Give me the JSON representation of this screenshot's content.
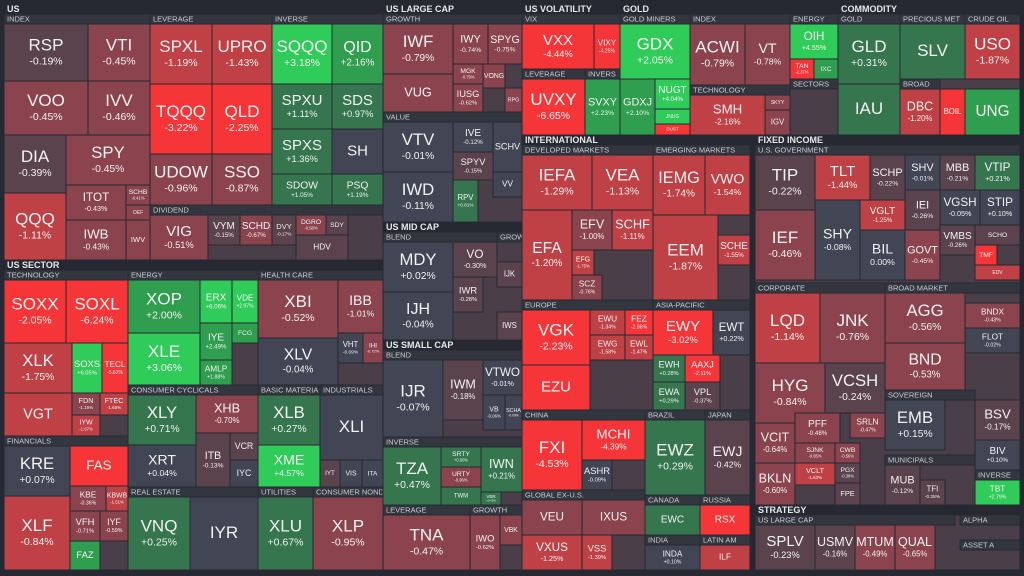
{
  "headers": [
    "US",
    "INDEX",
    "LEVERAGE",
    "INVERSE",
    "DIVIDEND",
    "US SECTOR",
    "TECHNOLOGY",
    "FINANCIALS",
    "ENERGY",
    "HEALTH CARE",
    "CONSUMER CYCLICALS",
    "BASIC MATERIA",
    "INDUSTRIALS",
    "REAL ESTATE",
    "UTILITIES",
    "CONSUMER NONDR",
    "US LARGE CAP",
    "GROWTH",
    "VALUE",
    "US MID CAP",
    "BLEND",
    "GROWTH",
    "US SMALL CAP",
    "BLEND",
    "INVERSE",
    "LEVERAGE",
    "GROWTH",
    "US VOLATILITY",
    "VIX",
    "LEVERAGE",
    "INVERS",
    "GOLD",
    "GOLD MINERS",
    "INDEX",
    "TECHNOLOGY",
    "ENERGY",
    "SECTORS",
    "COMMODITY",
    "GOLD",
    "PRECIOUS MET",
    "CRUDE OIL",
    "BROAD",
    "INTERNATIONAL",
    "DEVELOPED MARKETS",
    "EMERGING MARKETS",
    "EUROPE",
    "ASIA-PACIFIC",
    "CHINA",
    "BRAZIL",
    "JAPAN",
    "GLOBAL EX-U.S.",
    "CANADA",
    "RUSSIA",
    "INDIA",
    "LATIN AM",
    "FIXED INCOME",
    "U.S. GOVERNMENT",
    "CORPORATE",
    "BROAD MARKET",
    "SOVEREIGN",
    "MUNICIPALS",
    "INVERSE",
    "STRATEGY",
    "US LARGE CAP",
    "ALPHA",
    "ASSET A"
  ],
  "tiles": [
    {
      "ticker": "RSP",
      "change": "-0.19%"
    },
    {
      "ticker": "VTI",
      "change": "-0.45%"
    },
    {
      "ticker": "VOO",
      "change": "-0.45%"
    },
    {
      "ticker": "IVV",
      "change": "-0.46%"
    },
    {
      "ticker": "DIA",
      "change": "-0.39%"
    },
    {
      "ticker": "SPY",
      "change": "-0.45%"
    },
    {
      "ticker": "QQQ",
      "change": "-1.11%"
    },
    {
      "ticker": "ITOT",
      "change": "-0.43%"
    },
    {
      "ticker": "IWB",
      "change": "-0.43%"
    },
    {
      "ticker": "SCHB",
      "change": "-0.41%"
    },
    {
      "ticker": "OEF"
    },
    {
      "ticker": "IWV"
    },
    {
      "ticker": "SPXL",
      "change": "-1.19%"
    },
    {
      "ticker": "UPRO",
      "change": "-1.43%"
    },
    {
      "ticker": "TQQQ",
      "change": "-3.22%"
    },
    {
      "ticker": "QLD",
      "change": "-2.25%"
    },
    {
      "ticker": "UDOW",
      "change": "-0.96%"
    },
    {
      "ticker": "SSO",
      "change": "-0.87%"
    },
    {
      "ticker": "SQQQ",
      "change": "+3.18%"
    },
    {
      "ticker": "QID",
      "change": "+2.16%"
    },
    {
      "ticker": "SPXU",
      "change": "+1.11%"
    },
    {
      "ticker": "SDS",
      "change": "+0.97%"
    },
    {
      "ticker": "SPXS",
      "change": "+1.36%"
    },
    {
      "ticker": "SH"
    },
    {
      "ticker": "SDOW",
      "change": "+1.05%"
    },
    {
      "ticker": "PSQ",
      "change": "+1.19%"
    },
    {
      "ticker": "VIG",
      "change": "-0.51%"
    },
    {
      "ticker": "VYM",
      "change": "-0.15%"
    },
    {
      "ticker": "SCHD",
      "change": "-0.67%"
    },
    {
      "ticker": "DVY",
      "change": "-0.17%"
    },
    {
      "ticker": "DGRO",
      "change": "-0.58%"
    },
    {
      "ticker": "SDY"
    },
    {
      "ticker": "HDV"
    },
    {
      "ticker": "SOXX",
      "change": "-2.05%"
    },
    {
      "ticker": "SOXL",
      "change": "-6.24%"
    },
    {
      "ticker": "XLK",
      "change": "-1.75%"
    },
    {
      "ticker": "SOXS",
      "change": "+6.05%"
    },
    {
      "ticker": "TECL",
      "change": "-5.62%"
    },
    {
      "ticker": "VGT"
    },
    {
      "ticker": "FDN",
      "change": "-1.15%"
    },
    {
      "ticker": "FTEC",
      "change": "-1.65%"
    },
    {
      "ticker": "IYW",
      "change": "-1.67%"
    },
    {
      "ticker": "KRE",
      "change": "+0.07%"
    },
    {
      "ticker": "FAS"
    },
    {
      "ticker": "KBE",
      "change": "-0.36%"
    },
    {
      "ticker": "KBWB",
      "change": "-1.51%"
    },
    {
      "ticker": "XLF",
      "change": "-0.84%"
    },
    {
      "ticker": "VFH",
      "change": "-0.71%"
    },
    {
      "ticker": "IYF",
      "change": "-0.59%"
    },
    {
      "ticker": "FAZ"
    },
    {
      "ticker": "XOP",
      "change": "+2.00%"
    },
    {
      "ticker": "XLE",
      "change": "+3.06%"
    },
    {
      "ticker": "ERX",
      "change": "+6.06%"
    },
    {
      "ticker": "VDE",
      "change": "+2.97%"
    },
    {
      "ticker": "IYE",
      "change": "+2.49%"
    },
    {
      "ticker": "AMLP",
      "change": "+1.88%"
    },
    {
      "ticker": "FCG"
    },
    {
      "ticker": "XBI",
      "change": "-0.52%"
    },
    {
      "ticker": "IBB",
      "change": "-1.01%"
    },
    {
      "ticker": "XLV",
      "change": "-0.04%"
    },
    {
      "ticker": "VHT",
      "change": "-0.09%"
    },
    {
      "ticker": "IHI",
      "change": "-0.72%"
    },
    {
      "ticker": "XLY",
      "change": "+0.71%"
    },
    {
      "ticker": "XHB",
      "change": "-0.70%"
    },
    {
      "ticker": "XRT",
      "change": "+0.04%"
    },
    {
      "ticker": "ITB",
      "change": "-0.13%"
    },
    {
      "ticker": "VCR"
    },
    {
      "ticker": "IYC"
    },
    {
      "ticker": "XLB",
      "change": "+0.27%"
    },
    {
      "ticker": "XME",
      "change": "+4.57%"
    },
    {
      "ticker": "XLI"
    },
    {
      "ticker": "IYT"
    },
    {
      "ticker": "VIS"
    },
    {
      "ticker": "ITA"
    },
    {
      "ticker": "VNQ",
      "change": "+0.25%"
    },
    {
      "ticker": "IYR"
    },
    {
      "ticker": "XLU",
      "change": "+0.67%"
    },
    {
      "ticker": "XLP",
      "change": "-0.95%"
    },
    {
      "ticker": "IWF",
      "change": "-0.79%"
    },
    {
      "ticker": "VUG"
    },
    {
      "ticker": "IWY",
      "change": "-0.74%"
    },
    {
      "ticker": "SPYG",
      "change": "-0.75%"
    },
    {
      "ticker": "MGK",
      "change": "-0.79%"
    },
    {
      "ticker": "IUSG",
      "change": "-0.62%"
    },
    {
      "ticker": "VONG"
    },
    {
      "ticker": "RPG"
    },
    {
      "ticker": "VTV",
      "change": "-0.01%"
    },
    {
      "ticker": "IWD",
      "change": "-0.11%"
    },
    {
      "ticker": "IVE",
      "change": "-0.12%"
    },
    {
      "ticker": "SPYV",
      "change": "-0.15%"
    },
    {
      "ticker": "RPV",
      "change": "+0.81%"
    },
    {
      "ticker": "SCHV"
    },
    {
      "ticker": "VV"
    },
    {
      "ticker": "MDY",
      "change": "+0.02%"
    },
    {
      "ticker": "VO",
      "change": "-0.30%"
    },
    {
      "ticker": "IJH",
      "change": "-0.04%"
    },
    {
      "ticker": "IWR",
      "change": "-0.28%"
    },
    {
      "ticker": "IWS"
    },
    {
      "ticker": "IJK"
    },
    {
      "ticker": "IJR",
      "change": "-0.07%"
    },
    {
      "ticker": "IWM",
      "change": "-0.18%"
    },
    {
      "ticker": "VTWO",
      "change": "-0.01%"
    },
    {
      "ticker": "VB",
      "change": "-0.06%"
    },
    {
      "ticker": "SCHA",
      "change": "-0.09%"
    },
    {
      "ticker": "TZA",
      "change": "+0.47%"
    },
    {
      "ticker": "SRTY",
      "change": "+0.60%"
    },
    {
      "ticker": "URTY",
      "change": "-0.96%"
    },
    {
      "ticker": "TWM"
    },
    {
      "ticker": "IWN",
      "change": "+0.21%"
    },
    {
      "ticker": "VBR",
      "change": "+0.41%"
    },
    {
      "ticker": "TNA",
      "change": "-0.47%"
    },
    {
      "ticker": "IWO",
      "change": "-0.62%"
    },
    {
      "ticker": "VBK"
    },
    {
      "ticker": "VXX",
      "change": "-4.44%"
    },
    {
      "ticker": "VIXY",
      "change": "-4.25%"
    },
    {
      "ticker": "UVXY",
      "change": "-6.65%"
    },
    {
      "ticker": "SVXY",
      "change": "+2.23%"
    },
    {
      "ticker": "GDX",
      "change": "+2.05%"
    },
    {
      "ticker": "GDXJ",
      "change": "+2.10%"
    },
    {
      "ticker": "NUGT",
      "change": "+4.04%"
    },
    {
      "ticker": "JNUG"
    },
    {
      "ticker": "DUST"
    },
    {
      "ticker": "ACWI",
      "change": "-0.79%"
    },
    {
      "ticker": "VT",
      "change": "-0.78%"
    },
    {
      "ticker": "SMH",
      "change": "-2.16%"
    },
    {
      "ticker": "SKYY"
    },
    {
      "ticker": "IGV"
    },
    {
      "ticker": "OIH",
      "change": "+4.55%"
    },
    {
      "ticker": "TAN",
      "change": "-2.37%"
    },
    {
      "ticker": "IXC"
    },
    {
      "ticker": "GLD",
      "change": "+0.31%"
    },
    {
      "ticker": "IAU"
    },
    {
      "ticker": "SLV"
    },
    {
      "ticker": "USO",
      "change": "-1.87%"
    },
    {
      "ticker": "DBC",
      "change": "-1.20%"
    },
    {
      "ticker": "BOIL"
    },
    {
      "ticker": "UNG"
    },
    {
      "ticker": "IEFA",
      "change": "-1.29%"
    },
    {
      "ticker": "VEA",
      "change": "-1.13%"
    },
    {
      "ticker": "EFA",
      "change": "-1.20%"
    },
    {
      "ticker": "EFV",
      "change": "-1.00%"
    },
    {
      "ticker": "SCHF",
      "change": "-1.11%"
    },
    {
      "ticker": "EFG",
      "change": "-1.75%"
    },
    {
      "ticker": "SCZ",
      "change": "-0.76%"
    },
    {
      "ticker": "IEMG",
      "change": "-1.74%"
    },
    {
      "ticker": "VWO",
      "change": "-1.54%"
    },
    {
      "ticker": "EEM",
      "change": "-1.87%"
    },
    {
      "ticker": "SCHE",
      "change": "-1.55%"
    },
    {
      "ticker": "VGK",
      "change": "-2.23%"
    },
    {
      "ticker": "EZU"
    },
    {
      "ticker": "EWU",
      "change": "-1.34%"
    },
    {
      "ticker": "FEZ",
      "change": "-2.98%"
    },
    {
      "ticker": "EWG",
      "change": "-1.58%"
    },
    {
      "ticker": "EWL",
      "change": "-1.47%"
    },
    {
      "ticker": "EWY",
      "change": "-3.02%"
    },
    {
      "ticker": "EWT",
      "change": "+0.22%"
    },
    {
      "ticker": "EWH",
      "change": "+0.28%"
    },
    {
      "ticker": "AAXJ",
      "change": "-2.11%"
    },
    {
      "ticker": "EWA",
      "change": "+0.29%"
    },
    {
      "ticker": "VPL",
      "change": "-0.37%"
    },
    {
      "ticker": "FXI",
      "change": "-4.53%"
    },
    {
      "ticker": "MCHI",
      "change": "-4.39%"
    },
    {
      "ticker": "ASHR",
      "change": "-0.09%"
    },
    {
      "ticker": "EWZ",
      "change": "+0.29%"
    },
    {
      "ticker": "EWJ",
      "change": "-0.42%"
    },
    {
      "ticker": "VEU"
    },
    {
      "ticker": "IXUS"
    },
    {
      "ticker": "VXUS",
      "change": "-1.25%"
    },
    {
      "ticker": "VSS",
      "change": "-1.39%"
    },
    {
      "ticker": "EWC"
    },
    {
      "ticker": "RSX"
    },
    {
      "ticker": "INDA",
      "change": "+0.10%"
    },
    {
      "ticker": "ILF"
    },
    {
      "ticker": "TIP",
      "change": "-0.22%"
    },
    {
      "ticker": "TLT",
      "change": "-1.44%"
    },
    {
      "ticker": "IEF",
      "change": "-0.46%"
    },
    {
      "ticker": "SHY",
      "change": "-0.08%"
    },
    {
      "ticker": "SCHP",
      "change": "-0.22%"
    },
    {
      "ticker": "VGLT",
      "change": "-1.25%"
    },
    {
      "ticker": "BIL",
      "change": "0.00%"
    },
    {
      "ticker": "SHV",
      "change": "-0.01%"
    },
    {
      "ticker": "MBB",
      "change": "-0.21%"
    },
    {
      "ticker": "VTIP",
      "change": "+0.21%"
    },
    {
      "ticker": "IEI",
      "change": "-0.26%"
    },
    {
      "ticker": "VGSH",
      "change": "-0.05%"
    },
    {
      "ticker": "STIP",
      "change": "+0.10%"
    },
    {
      "ticker": "GOVT",
      "change": "-0.45%"
    },
    {
      "ticker": "VMBS",
      "change": "-0.26%"
    },
    {
      "ticker": "SCHO"
    },
    {
      "ticker": "TMF"
    },
    {
      "ticker": "EDV"
    },
    {
      "ticker": "LQD",
      "change": "-1.14%"
    },
    {
      "ticker": "JNK",
      "change": "-0.76%"
    },
    {
      "ticker": "HYG",
      "change": "-0.84%"
    },
    {
      "ticker": "VCSH",
      "change": "-0.24%"
    },
    {
      "ticker": "VCIT",
      "change": "-0.64%"
    },
    {
      "ticker": "PFF",
      "change": "-0.48%"
    },
    {
      "ticker": "SRLN",
      "change": "-0.47%"
    },
    {
      "ticker": "SJNK",
      "change": "-0.65%"
    },
    {
      "ticker": "CWB",
      "change": "-0.56%"
    },
    {
      "ticker": "PGX",
      "change": "-0.38%"
    },
    {
      "ticker": "BKLN",
      "change": "-0.60%"
    },
    {
      "ticker": "VCLT",
      "change": "-1.63%"
    },
    {
      "ticker": "FPE"
    },
    {
      "ticker": "AGG",
      "change": "-0.56%"
    },
    {
      "ticker": "BND",
      "change": "-0.53%"
    },
    {
      "ticker": "BNDX",
      "change": "-0.43%"
    },
    {
      "ticker": "FLOT",
      "change": "-0.02%"
    },
    {
      "ticker": "EMB",
      "change": "+0.15%"
    },
    {
      "ticker": "BSV",
      "change": "-0.17%"
    },
    {
      "ticker": "MUB",
      "change": "-0.12%"
    },
    {
      "ticker": "TFI",
      "change": "-0.28%"
    },
    {
      "ticker": "BIV",
      "change": "+0.10%"
    },
    {
      "ticker": "TBT",
      "change": "+2.79%"
    },
    {
      "ticker": "SPLV",
      "change": "-0.23%"
    },
    {
      "ticker": "USMV",
      "change": "-0.16%"
    },
    {
      "ticker": "MTUM",
      "change": "-0.49%"
    },
    {
      "ticker": "QUAL",
      "change": "-0.65%"
    }
  ]
}
